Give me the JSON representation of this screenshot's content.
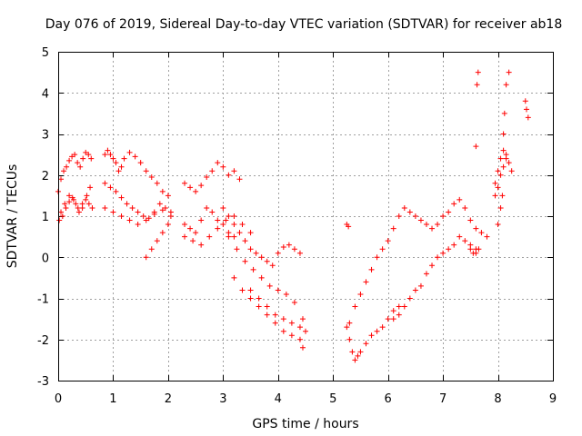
{
  "chart_data": {
    "type": "scatter",
    "title": "Day 076 of 2019, Sidereal Day-to-day VTEC variation (SDTVAR) for receiver ab18",
    "xlabel": "GPS time / hours",
    "ylabel": "SDTVAR / TECUs",
    "xlim": [
      0,
      9
    ],
    "ylim": [
      -3,
      5
    ],
    "xticks": [
      "0",
      "1",
      "2",
      "3",
      "4",
      "5",
      "6",
      "7",
      "8",
      "9"
    ],
    "yticks": [
      "-3",
      "-2",
      "-1",
      "0",
      "1",
      "2",
      "3",
      "4",
      "5"
    ],
    "grid": true,
    "marker": "+",
    "color": "#ff0000",
    "series": [
      {
        "name": "SDTVAR",
        "x": [
          0.0,
          0.05,
          0.1,
          0.15,
          0.2,
          0.25,
          0.3,
          0.35,
          0.4,
          0.45,
          0.5,
          0.55,
          0.6,
          0.02,
          0.08,
          0.14,
          0.2,
          0.26,
          0.32,
          0.38,
          0.44,
          0.5,
          0.56,
          0.62,
          0.05,
          0.12,
          0.2,
          0.28,
          0.36,
          0.44,
          0.52,
          0.58,
          0.85,
          0.9,
          0.95,
          1.0,
          1.05,
          1.1,
          1.15,
          1.2,
          1.3,
          1.4,
          1.5,
          1.6,
          1.7,
          1.8,
          1.9,
          2.0,
          0.85,
          0.95,
          1.05,
          1.15,
          1.25,
          1.35,
          1.45,
          1.55,
          1.65,
          1.75,
          1.85,
          1.95,
          2.05,
          0.85,
          1.0,
          1.15,
          1.3,
          1.45,
          1.6,
          1.75,
          1.9,
          2.05,
          1.6,
          1.7,
          1.8,
          1.9,
          2.0,
          2.3,
          2.4,
          2.5,
          2.6,
          2.7,
          2.8,
          2.9,
          3.0,
          3.1,
          3.2,
          3.3,
          2.3,
          2.4,
          2.5,
          2.6,
          2.7,
          2.8,
          2.9,
          3.0,
          3.1,
          3.2,
          2.3,
          2.45,
          2.6,
          2.75,
          2.9,
          3.05,
          3.2,
          3.35,
          3.5,
          3.0,
          3.1,
          3.2,
          3.3,
          3.4,
          3.5,
          3.6,
          3.7,
          3.8,
          3.9,
          4.0,
          4.1,
          4.2,
          4.3,
          4.4,
          3.1,
          3.25,
          3.4,
          3.55,
          3.7,
          3.85,
          4.0,
          4.15,
          4.3,
          4.45,
          3.2,
          3.35,
          3.5,
          3.65,
          3.8,
          3.95,
          4.1,
          4.25,
          4.4,
          4.45,
          3.5,
          3.65,
          3.8,
          3.95,
          4.1,
          4.25,
          4.4,
          4.5,
          5.25,
          5.3,
          5.35,
          5.4,
          5.45,
          5.5,
          5.6,
          5.7,
          5.8,
          5.9,
          6.0,
          6.1,
          6.2,
          5.3,
          5.4,
          5.5,
          5.6,
          5.7,
          5.8,
          5.9,
          6.0,
          6.1,
          6.2,
          6.3,
          6.4,
          6.5,
          6.6,
          6.7,
          6.8,
          6.9,
          7.0,
          7.1,
          7.2,
          7.3,
          7.4,
          7.5,
          7.6,
          7.7,
          7.8,
          6.1,
          6.2,
          6.3,
          6.4,
          6.5,
          6.6,
          6.7,
          6.8,
          6.9,
          7.0,
          7.1,
          7.2,
          7.3,
          7.4,
          7.5,
          7.6,
          7.5,
          7.55,
          7.6,
          7.65,
          7.6,
          7.62,
          7.64,
          7.95,
          8.0,
          8.05,
          8.1,
          8.15,
          8.2,
          8.25,
          7.95,
          8.0,
          8.05,
          8.1,
          8.15,
          8.0,
          8.05,
          8.08,
          8.1,
          8.12,
          8.15,
          8.2,
          8.5,
          8.52,
          8.55,
          5.25,
          5.28
        ],
        "y": [
          1.6,
          1.9,
          2.1,
          2.2,
          2.35,
          2.45,
          2.5,
          2.3,
          2.2,
          2.4,
          2.55,
          2.5,
          2.4,
          0.9,
          1.0,
          1.2,
          1.35,
          1.45,
          1.3,
          1.1,
          1.2,
          1.4,
          1.3,
          1.2,
          1.1,
          1.3,
          1.5,
          1.4,
          1.2,
          1.3,
          1.5,
          1.7,
          2.5,
          2.6,
          2.5,
          2.4,
          2.3,
          2.1,
          2.2,
          2.4,
          2.55,
          2.45,
          2.3,
          2.1,
          1.95,
          1.8,
          1.6,
          1.5,
          1.8,
          1.7,
          1.6,
          1.45,
          1.3,
          1.2,
          1.1,
          1.0,
          0.95,
          1.1,
          1.3,
          1.2,
          1.1,
          1.2,
          1.1,
          1.0,
          0.9,
          0.8,
          0.9,
          1.05,
          1.15,
          1.0,
          0.0,
          0.2,
          0.4,
          0.6,
          0.8,
          1.8,
          1.7,
          1.6,
          1.75,
          1.95,
          2.1,
          2.3,
          2.2,
          2.0,
          2.1,
          1.9,
          0.8,
          0.7,
          0.6,
          0.9,
          1.2,
          1.1,
          0.9,
          0.8,
          0.6,
          0.5,
          0.5,
          0.4,
          0.3,
          0.5,
          0.7,
          0.9,
          1.0,
          0.8,
          0.6,
          1.2,
          1.0,
          0.8,
          0.6,
          0.4,
          0.2,
          0.1,
          0.0,
          -0.1,
          -0.2,
          0.1,
          0.25,
          0.3,
          0.2,
          0.1,
          0.5,
          0.2,
          -0.1,
          -0.3,
          -0.5,
          -0.7,
          -0.8,
          -0.9,
          -1.1,
          -1.5,
          -0.5,
          -0.8,
          -1.0,
          -1.2,
          -1.4,
          -1.6,
          -1.8,
          -1.9,
          -2.0,
          -2.2,
          -0.8,
          -1.0,
          -1.2,
          -1.4,
          -1.5,
          -1.6,
          -1.7,
          -1.8,
          -1.7,
          -2.0,
          -2.3,
          -2.5,
          -2.4,
          -2.3,
          -2.1,
          -1.9,
          -1.8,
          -1.7,
          -1.5,
          -1.3,
          -1.2,
          -1.6,
          -1.2,
          -0.9,
          -0.6,
          -0.3,
          0.0,
          0.2,
          0.4,
          0.7,
          1.0,
          1.2,
          1.1,
          1.0,
          0.9,
          0.8,
          0.7,
          0.8,
          1.0,
          1.1,
          1.3,
          1.4,
          1.2,
          0.9,
          0.7,
          0.6,
          0.5,
          -1.5,
          -1.4,
          -1.2,
          -1.0,
          -0.8,
          -0.7,
          -0.4,
          -0.2,
          0.0,
          0.1,
          0.2,
          0.3,
          0.5,
          0.4,
          0.3,
          0.2,
          0.2,
          0.1,
          0.1,
          0.2,
          2.7,
          4.2,
          4.5,
          1.8,
          2.1,
          2.4,
          2.6,
          2.5,
          2.3,
          2.1,
          1.5,
          1.7,
          2.0,
          2.2,
          2.4,
          0.8,
          1.2,
          1.5,
          3.0,
          3.5,
          4.2,
          4.5,
          3.8,
          3.6,
          3.4,
          0.8,
          0.75
        ]
      }
    ]
  }
}
